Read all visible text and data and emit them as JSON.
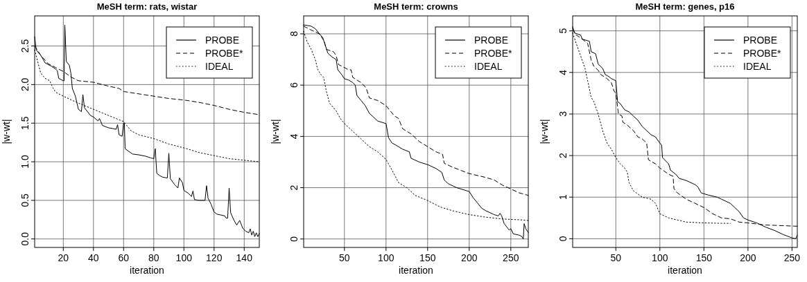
{
  "chart_data": [
    {
      "type": "line",
      "title": "MeSH term: rats, wistar",
      "xlabel": "iteration",
      "ylabel": "|w-wt|",
      "xlim": [
        1,
        150
      ],
      "ylim": [
        -0.11,
        2.89
      ],
      "xticks": [
        20,
        40,
        60,
        80,
        100,
        120,
        140
      ],
      "yticks": [
        {
          "value": 0,
          "label": "0.0"
        },
        0.5,
        {
          "value": 1,
          "label": "1.0"
        },
        1.5,
        {
          "value": 2,
          "label": "2.0"
        },
        2.5
      ],
      "grid": true,
      "legend": "top right",
      "series": [
        {
          "name": "PROBE",
          "color": "#000000",
          "line_style": "solid",
          "x": [
            1,
            2,
            5,
            8,
            12,
            15,
            16,
            17,
            20,
            20.5,
            21,
            22,
            24,
            25,
            26,
            28,
            30,
            32,
            33,
            34,
            36,
            38,
            40,
            43,
            44,
            46,
            50,
            53,
            55,
            56,
            57,
            59,
            60,
            60.5,
            61,
            63,
            66,
            70,
            75,
            78,
            80,
            81,
            82,
            84,
            86,
            89,
            90,
            91,
            94,
            96,
            97,
            99,
            100,
            103,
            105,
            106,
            107,
            110,
            114,
            115,
            116,
            118,
            120,
            122,
            127,
            128,
            129,
            130,
            131,
            133,
            135,
            137,
            139,
            141,
            143,
            144,
            145,
            146,
            147,
            148,
            149,
            150
          ],
          "values": [
            2.62,
            2.45,
            2.38,
            2.28,
            2.24,
            2.2,
            2.18,
            2.08,
            2.05,
            2.05,
            2.77,
            2.3,
            2.25,
            2.15,
            1.95,
            1.85,
            1.68,
            1.65,
            1.87,
            1.7,
            1.65,
            1.6,
            1.58,
            1.53,
            1.56,
            1.47,
            1.44,
            1.43,
            1.42,
            1.48,
            1.35,
            1.33,
            1.5,
            1.5,
            1.17,
            1.14,
            1.1,
            1.09,
            1.07,
            1.05,
            1.04,
            1.17,
            0.85,
            0.82,
            0.8,
            0.79,
            1.11,
            0.78,
            0.7,
            0.66,
            0.79,
            0.73,
            0.63,
            0.59,
            0.55,
            0.62,
            0.51,
            0.5,
            0.5,
            0.69,
            0.53,
            0.45,
            0.35,
            0.32,
            0.3,
            0.27,
            0.27,
            0.66,
            0.34,
            0.25,
            0.18,
            0.24,
            0.14,
            0.1,
            0.08,
            0.13,
            0.05,
            0.1,
            0.03,
            0.08,
            0.03,
            0.07
          ]
        },
        {
          "name": "PROBE*",
          "color": "#000000",
          "line_style": "dashed",
          "x": [
            1,
            5,
            10,
            15,
            20,
            25,
            30,
            40,
            50,
            57,
            60,
            70,
            80,
            90,
            100,
            110,
            120,
            130,
            140,
            150
          ],
          "values": [
            2.5,
            2.38,
            2.27,
            2.22,
            2.17,
            2.1,
            2.05,
            2.03,
            1.98,
            1.95,
            1.91,
            1.88,
            1.85,
            1.82,
            1.8,
            1.77,
            1.73,
            1.68,
            1.64,
            1.61
          ]
        },
        {
          "name": "IDEAL",
          "color": "#000000",
          "line_style": "dotted",
          "x": [
            1,
            3,
            5,
            8,
            11,
            13,
            15,
            20,
            30,
            40,
            50,
            60,
            65,
            70,
            80,
            90,
            100,
            110,
            120,
            130,
            140,
            150
          ],
          "values": [
            2.45,
            2.3,
            2.15,
            2.08,
            2.05,
            1.96,
            1.9,
            1.85,
            1.76,
            1.68,
            1.6,
            1.52,
            1.4,
            1.35,
            1.3,
            1.23,
            1.18,
            1.12,
            1.08,
            1.04,
            1.02,
            1.0
          ]
        }
      ]
    },
    {
      "type": "line",
      "title": "MeSH term: crowns",
      "xlabel": "iteration",
      "ylabel": "|w-wt|",
      "xlim": [
        1,
        271
      ],
      "ylim": [
        -0.33,
        8.7
      ],
      "xticks": [
        50,
        100,
        150,
        200,
        250
      ],
      "yticks": [
        0,
        2,
        4,
        6,
        8
      ],
      "grid": true,
      "legend": "top right",
      "series": [
        {
          "name": "PROBE",
          "color": "#000000",
          "line_style": "solid",
          "x": [
            1,
            10,
            15,
            20,
            24,
            30,
            35,
            40,
            42,
            47,
            50,
            55,
            60,
            63,
            65,
            70,
            75,
            80,
            85,
            90,
            100,
            103,
            107,
            115,
            120,
            128,
            130,
            140,
            150,
            160,
            167,
            170,
            175,
            185,
            195,
            200,
            205,
            210,
            215,
            220,
            230,
            235,
            237,
            239,
            242,
            248,
            250,
            253,
            260,
            263,
            264,
            265,
            266,
            268,
            271
          ],
          "values": [
            8.35,
            8.3,
            8.2,
            8.0,
            7.85,
            7.25,
            7.1,
            7.0,
            6.6,
            6.4,
            6.25,
            6.2,
            6.1,
            6.0,
            5.6,
            5.4,
            5.2,
            4.9,
            4.75,
            4.6,
            4.5,
            3.95,
            3.75,
            3.6,
            3.5,
            3.4,
            3.15,
            3.0,
            2.9,
            2.75,
            2.6,
            2.3,
            2.15,
            2.0,
            1.9,
            1.85,
            1.6,
            1.4,
            1.2,
            1.1,
            0.95,
            0.9,
            1.0,
            0.9,
            0.6,
            0.35,
            0.4,
            0.2,
            0.15,
            0.1,
            0.05,
            0.0,
            0.6,
            0.4,
            0.25
          ]
        },
        {
          "name": "PROBE*",
          "color": "#000000",
          "line_style": "dashed",
          "x": [
            1,
            10,
            20,
            26,
            28,
            37,
            40,
            43,
            55,
            58,
            60,
            70,
            76,
            80,
            90,
            100,
            110,
            115,
            120,
            130,
            140,
            150,
            160,
            168,
            170,
            180,
            200,
            220,
            230,
            240,
            250,
            260,
            271
          ],
          "values": [
            8.3,
            8.15,
            8.0,
            7.7,
            7.4,
            7.3,
            7.15,
            6.8,
            6.6,
            6.6,
            6.3,
            6.1,
            5.9,
            5.5,
            5.4,
            5.2,
            4.8,
            4.7,
            4.3,
            4.1,
            3.8,
            3.6,
            3.4,
            3.3,
            2.95,
            2.8,
            2.55,
            2.4,
            2.3,
            2.1,
            1.95,
            1.8,
            1.7
          ]
        },
        {
          "name": "IDEAL",
          "color": "#000000",
          "line_style": "dotted",
          "x": [
            1,
            5,
            10,
            15,
            18,
            22,
            25,
            28,
            32,
            40,
            45,
            50,
            60,
            70,
            80,
            90,
            100,
            107,
            115,
            125,
            135,
            150,
            165,
            180,
            200,
            220,
            240,
            260,
            271
          ],
          "values": [
            8.1,
            7.7,
            7.4,
            7.0,
            6.6,
            6.4,
            6.3,
            5.8,
            5.3,
            5.0,
            4.7,
            4.5,
            4.2,
            3.9,
            3.6,
            3.4,
            3.1,
            2.7,
            2.2,
            2.0,
            1.7,
            1.5,
            1.25,
            1.1,
            0.95,
            0.85,
            0.78,
            0.75,
            0.72
          ]
        }
      ]
    },
    {
      "type": "line",
      "title": "MeSH term: genes, p16",
      "xlabel": "iteration",
      "ylabel": "|w-wt|",
      "xlim": [
        1,
        256
      ],
      "ylim": [
        -0.21,
        5.36
      ],
      "xticks": [
        50,
        100,
        150,
        200,
        250
      ],
      "yticks": [
        0,
        1,
        2,
        3,
        4,
        5
      ],
      "grid": true,
      "legend": "top right",
      "series": [
        {
          "name": "PROBE",
          "color": "#000000",
          "line_style": "solid",
          "x": [
            1,
            3,
            10,
            12,
            20,
            22,
            27,
            30,
            35,
            38,
            42,
            45,
            50,
            52,
            55,
            60,
            65,
            70,
            75,
            80,
            85,
            90,
            95,
            100,
            102,
            103,
            110,
            112,
            118,
            122,
            130,
            140,
            143,
            147,
            155,
            165,
            170,
            180,
            185,
            190,
            195,
            200,
            210,
            220,
            230,
            240,
            250,
            254,
            256
          ],
          "values": [
            5.1,
            4.95,
            4.9,
            4.8,
            4.75,
            4.5,
            4.45,
            4.2,
            4.1,
            3.95,
            3.9,
            3.85,
            3.8,
            3.3,
            3.25,
            3.1,
            3.05,
            2.95,
            2.85,
            2.7,
            2.6,
            2.5,
            2.45,
            2.3,
            2.25,
            1.95,
            1.8,
            1.65,
            1.55,
            1.45,
            1.4,
            1.3,
            1.25,
            1.1,
            1.05,
            1.0,
            0.95,
            0.85,
            0.75,
            0.65,
            0.5,
            0.45,
            0.38,
            0.28,
            0.2,
            0.1,
            0.02,
            0.0,
            0.08
          ]
        },
        {
          "name": "PROBE*",
          "color": "#000000",
          "line_style": "dashed",
          "x": [
            1,
            5,
            12,
            18,
            22,
            25,
            30,
            33,
            40,
            45,
            48,
            50,
            53,
            57,
            58,
            62,
            70,
            75,
            80,
            85,
            87,
            95,
            100,
            110,
            115,
            116,
            120,
            130,
            140,
            150,
            160,
            170,
            180,
            190,
            200,
            220,
            256
          ],
          "values": [
            5.05,
            4.9,
            4.8,
            4.7,
            4.3,
            4.15,
            4.05,
            3.95,
            3.85,
            3.75,
            3.55,
            3.5,
            3.0,
            2.95,
            2.8,
            2.75,
            2.6,
            2.45,
            2.4,
            2.3,
            1.9,
            1.8,
            1.7,
            1.55,
            1.5,
            1.2,
            1.1,
            0.95,
            0.85,
            0.75,
            0.6,
            0.5,
            0.48,
            0.4,
            0.38,
            0.33,
            0.3
          ]
        },
        {
          "name": "IDEAL",
          "color": "#000000",
          "line_style": "dotted",
          "x": [
            1,
            5,
            10,
            15,
            18,
            22,
            25,
            30,
            35,
            40,
            45,
            50,
            55,
            60,
            63,
            65,
            70,
            80,
            90,
            95,
            100,
            110,
            120,
            130,
            150,
            170,
            180
          ],
          "values": [
            4.95,
            4.7,
            4.4,
            4.1,
            3.8,
            3.4,
            3.3,
            3.0,
            2.6,
            2.3,
            2.15,
            1.95,
            1.8,
            1.7,
            1.6,
            1.35,
            1.15,
            1.0,
            0.95,
            0.85,
            0.6,
            0.5,
            0.45,
            0.4,
            0.38,
            0.37,
            0.37
          ]
        }
      ]
    }
  ]
}
